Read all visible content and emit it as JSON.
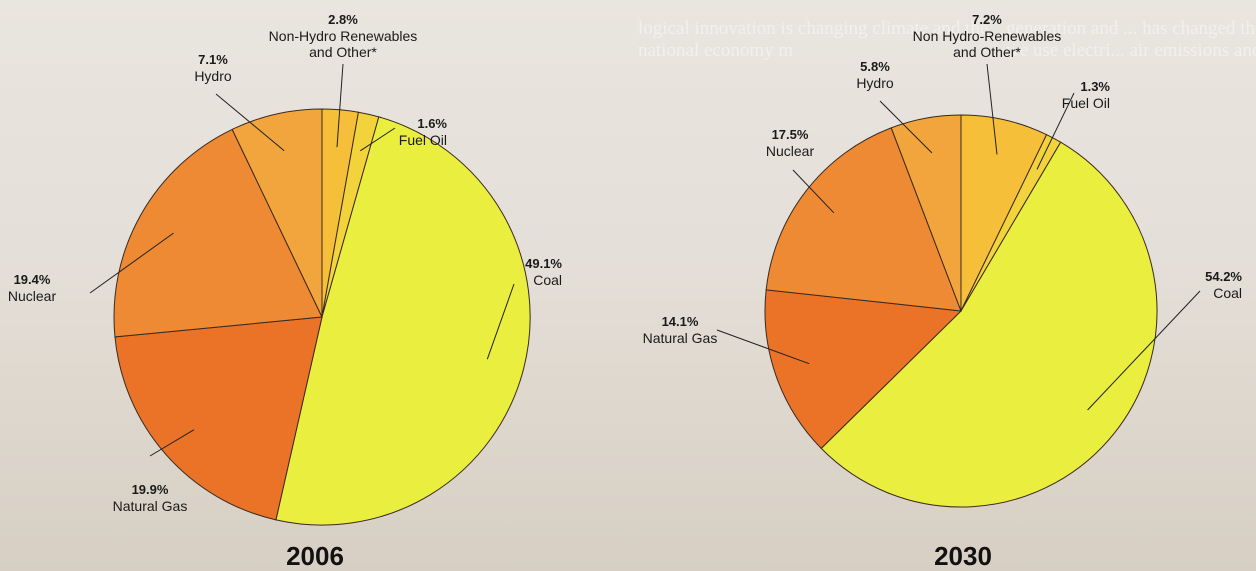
{
  "background_text": {
    "left": [
      "logical innovation is changing climate and the",
      "national economy m"
    ],
    "right": [
      "generation and ... has changed the ways",
      "we use electri... air emissions and"
    ]
  },
  "colors": {
    "Coal": "#eaee3e",
    "Fuel Oil": "#f3d33c",
    "Non-Hydro Renewables and Other*": "#f5bf3a",
    "Hydro": "#f1a53c",
    "Nuclear": "#ee8a34",
    "Natural Gas": "#ea7327"
  },
  "chart_data": [
    {
      "type": "pie",
      "title": "2006",
      "slices": [
        {
          "key": "coal",
          "label": "Coal",
          "pct_label": "49.1%",
          "value": 49.1,
          "color": "#eaee3e"
        },
        {
          "key": "fuel",
          "label": "Fuel Oil",
          "pct_label": "1.6%",
          "value": 1.6,
          "color": "#f3d33c"
        },
        {
          "key": "renew",
          "label": "Non-Hydro Renewables and Other*",
          "label_lines": [
            "Non-Hydro Renewables",
            "and Other*"
          ],
          "pct_label": "2.8%",
          "value": 2.8,
          "color": "#f5bf3a"
        },
        {
          "key": "hydro",
          "label": "Hydro",
          "pct_label": "7.1%",
          "value": 7.1,
          "color": "#f1a53c"
        },
        {
          "key": "nuclear",
          "label": "Nuclear",
          "pct_label": "19.4%",
          "value": 19.4,
          "color": "#ee8a34"
        },
        {
          "key": "gas",
          "label": "Natural Gas",
          "label_lines": [
            "Natural Gas"
          ],
          "pct_label": "19.9%",
          "value": 19.9,
          "color": "#ea7327"
        }
      ]
    },
    {
      "type": "pie",
      "title": "2030",
      "slices": [
        {
          "key": "coal",
          "label": "Coal",
          "pct_label": "54.2%",
          "value": 54.2,
          "color": "#eaee3e"
        },
        {
          "key": "fuel",
          "label": "Fuel Oil",
          "pct_label": "1.3%",
          "value": 1.3,
          "color": "#f3d33c"
        },
        {
          "key": "renew",
          "label": "Non Hydro-Renewables and Other*",
          "label_lines": [
            "Non Hydro-Renewables",
            "and Other*"
          ],
          "pct_label": "7.2%",
          "value": 7.2,
          "color": "#f5bf3a"
        },
        {
          "key": "hydro",
          "label": "Hydro",
          "pct_label": "5.8%",
          "value": 5.8,
          "color": "#f1a53c"
        },
        {
          "key": "nuclear",
          "label": "Nuclear",
          "pct_label": "17.5%",
          "value": 17.5,
          "color": "#ee8a34"
        },
        {
          "key": "gas",
          "label": "Natural Gas",
          "label_lines": [
            "Natural Gas"
          ],
          "pct_label": "14.1%",
          "value": 14.1,
          "color": "#ea7327"
        }
      ]
    }
  ]
}
